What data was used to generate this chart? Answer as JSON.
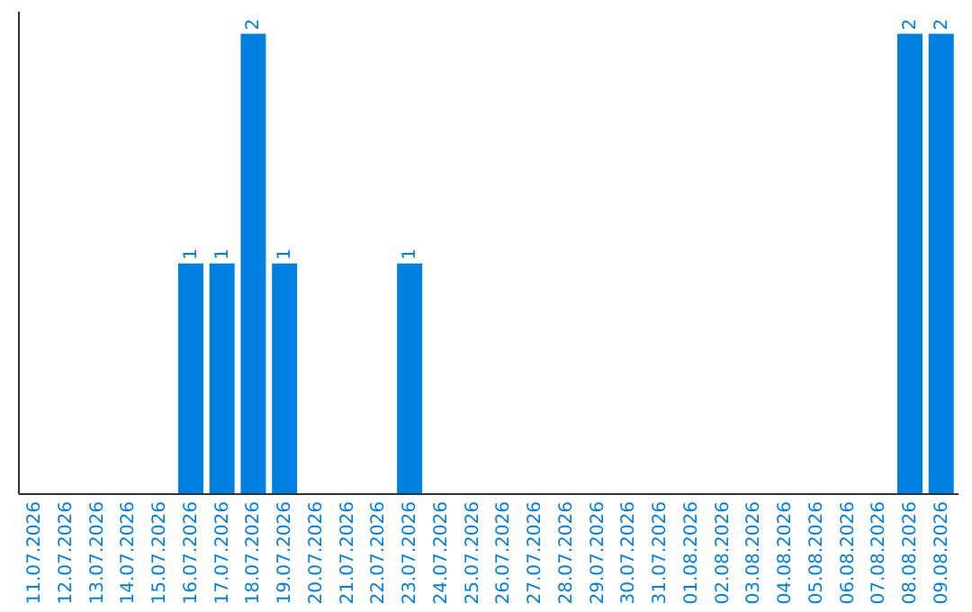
{
  "chart_data": {
    "type": "bar",
    "categories": [
      "11.07.2026",
      "12.07.2026",
      "13.07.2026",
      "14.07.2026",
      "15.07.2026",
      "16.07.2026",
      "17.07.2026",
      "18.07.2026",
      "19.07.2026",
      "20.07.2026",
      "21.07.2026",
      "22.07.2026",
      "23.07.2026",
      "24.07.2026",
      "25.07.2026",
      "26.07.2026",
      "27.07.2026",
      "28.07.2026",
      "29.07.2026",
      "30.07.2026",
      "31.07.2026",
      "01.08.2026",
      "02.08.2026",
      "03.08.2026",
      "04.08.2026",
      "05.08.2026",
      "06.08.2026",
      "07.08.2026",
      "08.08.2026",
      "09.08.2026"
    ],
    "values": [
      0,
      0,
      0,
      0,
      0,
      1,
      1,
      2,
      1,
      0,
      0,
      0,
      1,
      0,
      0,
      0,
      0,
      0,
      0,
      0,
      0,
      0,
      0,
      0,
      0,
      0,
      0,
      0,
      2,
      2
    ],
    "value_labels": [
      null,
      null,
      null,
      null,
      null,
      "1",
      "1",
      "2",
      "1",
      null,
      null,
      null,
      "1",
      null,
      null,
      null,
      null,
      null,
      null,
      null,
      null,
      null,
      null,
      null,
      null,
      null,
      null,
      null,
      "2",
      "2"
    ],
    "color": "#0080e0",
    "tick_labels": "x",
    "grid": false
  }
}
